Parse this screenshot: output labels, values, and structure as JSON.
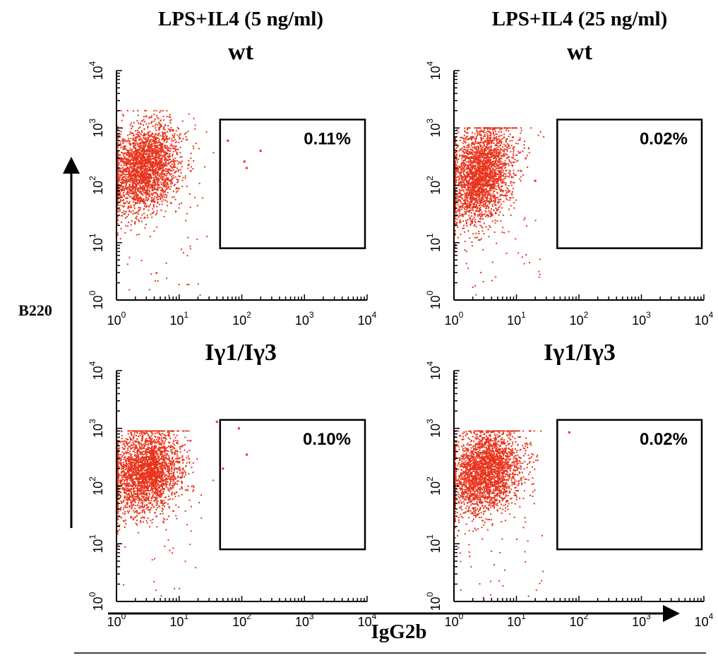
{
  "figure": {
    "x_axis_title": "IgG2b",
    "y_axis_title": "B220",
    "columns": [
      {
        "title": "LPS+IL4 (5 ng/ml)"
      },
      {
        "title": "LPS+IL4 (25 ng/ml)"
      }
    ],
    "rows": [
      {
        "label": "wt"
      },
      {
        "label": "Iγ1/Iγ3"
      }
    ],
    "dot_color": "#e8341c",
    "axis_color": "#000000"
  },
  "chart_data": [
    {
      "type": "scatter",
      "column": "LPS+IL4 (5 ng/ml)",
      "row": "wt",
      "xlabel": "IgG2b",
      "ylabel": "B220",
      "xscale": "log",
      "yscale": "log",
      "xlim": [
        1,
        10000
      ],
      "ylim": [
        1,
        10000
      ],
      "x_tick_labels": [
        "10^0",
        "10^1",
        "10^2",
        "10^3",
        "10^4"
      ],
      "y_tick_labels": [
        "10^0",
        "10^1",
        "10^2",
        "10^3",
        "10^4"
      ],
      "gate": {
        "x_range": [
          45,
          10000
        ],
        "y_range": [
          8,
          1400
        ],
        "percent_label": "0.11%"
      },
      "population": {
        "center": [
          2.8,
          200
        ],
        "x_spread_log": 0.28,
        "y_spread_log": 0.38,
        "x_max": 40,
        "y_max": 2000
      },
      "gate_events": [
        [
          60,
          600
        ],
        [
          45,
          120
        ],
        [
          120,
          200
        ],
        [
          200,
          400
        ],
        [
          110,
          260
        ]
      ]
    },
    {
      "type": "scatter",
      "column": "LPS+IL4 (25 ng/ml)",
      "row": "wt",
      "xlabel": "IgG2b",
      "ylabel": "B220",
      "xscale": "log",
      "yscale": "log",
      "xlim": [
        1,
        10000
      ],
      "ylim": [
        1,
        10000
      ],
      "x_tick_labels": [
        "10^0",
        "10^1",
        "10^2",
        "10^3",
        "10^4"
      ],
      "y_tick_labels": [
        "10^0",
        "10^1",
        "10^2",
        "10^3",
        "10^4"
      ],
      "gate": {
        "x_range": [
          45,
          10000
        ],
        "y_range": [
          8,
          1400
        ],
        "percent_label": "0.02%"
      },
      "population": {
        "center": [
          2.6,
          150
        ],
        "x_spread_log": 0.25,
        "y_spread_log": 0.42,
        "x_max": 30,
        "y_max": 1000
      },
      "gate_events": [
        [
          20,
          120
        ]
      ]
    },
    {
      "type": "scatter",
      "column": "LPS+IL4 (5 ng/ml)",
      "row": "Iγ1/Iγ3",
      "xlabel": "IgG2b",
      "ylabel": "B220",
      "xscale": "log",
      "yscale": "log",
      "xlim": [
        1,
        10000
      ],
      "ylim": [
        1,
        10000
      ],
      "x_tick_labels": [
        "10^0",
        "10^1",
        "10^2",
        "10^3",
        "10^4"
      ],
      "y_tick_labels": [
        "10^0",
        "10^1",
        "10^2",
        "10^3",
        "10^4"
      ],
      "gate": {
        "x_range": [
          45,
          10000
        ],
        "y_range": [
          8,
          1400
        ],
        "percent_label": "0.10%"
      },
      "population": {
        "center": [
          3.0,
          180
        ],
        "x_spread_log": 0.28,
        "y_spread_log": 0.38,
        "x_max": 35,
        "y_max": 900
      },
      "gate_events": [
        [
          50,
          200
        ],
        [
          120,
          350
        ],
        [
          90,
          1000
        ],
        [
          40,
          1300
        ]
      ]
    },
    {
      "type": "scatter",
      "column": "LPS+IL4 (25 ng/ml)",
      "row": "Iγ1/Iγ3",
      "xlabel": "IgG2b",
      "ylabel": "B220",
      "xscale": "log",
      "yscale": "log",
      "xlim": [
        1,
        10000
      ],
      "ylim": [
        1,
        10000
      ],
      "x_tick_labels": [
        "10^0",
        "10^1",
        "10^2",
        "10^3",
        "10^4"
      ],
      "y_tick_labels": [
        "10^0",
        "10^1",
        "10^2",
        "10^3",
        "10^4"
      ],
      "gate": {
        "x_range": [
          45,
          10000
        ],
        "y_range": [
          8,
          1400
        ],
        "percent_label": "0.02%"
      },
      "population": {
        "center": [
          3.2,
          180
        ],
        "x_spread_log": 0.28,
        "y_spread_log": 0.38,
        "x_max": 35,
        "y_max": 900
      },
      "gate_events": [
        [
          70,
          850
        ]
      ]
    }
  ]
}
